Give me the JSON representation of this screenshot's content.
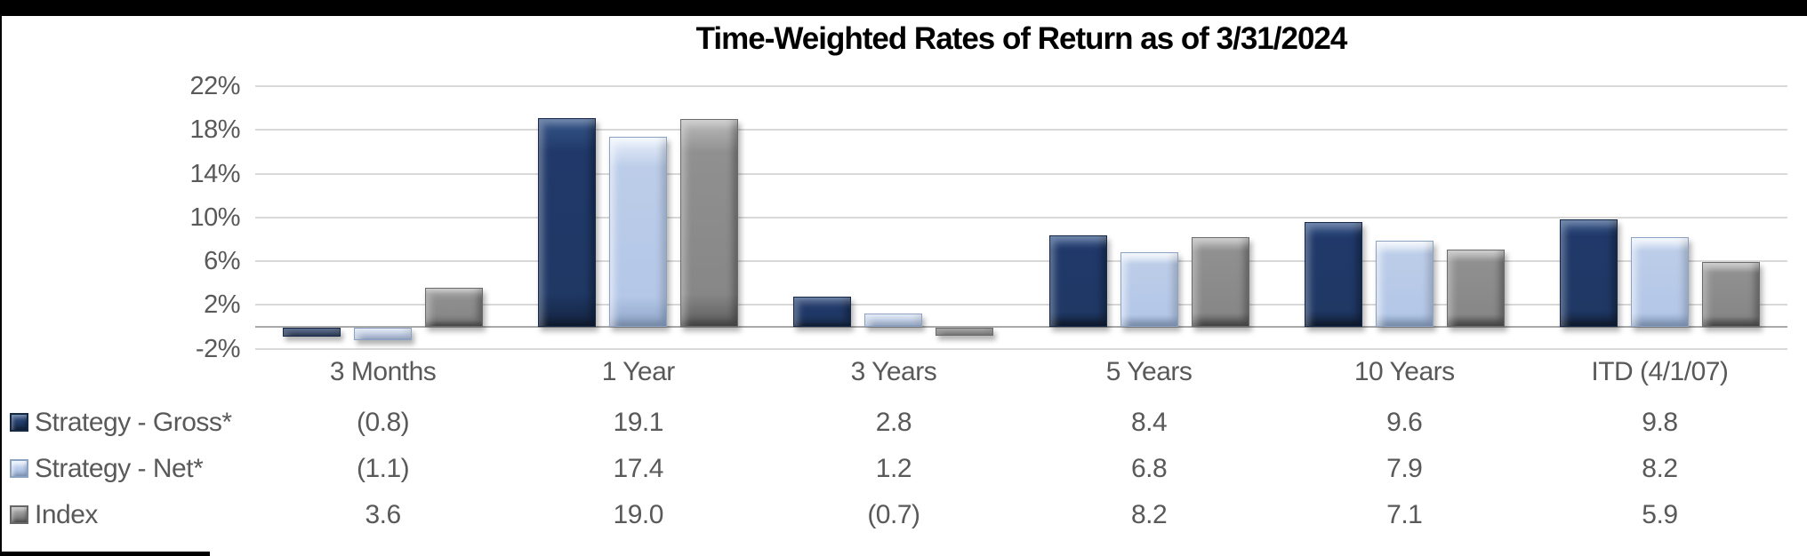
{
  "chart_data": {
    "type": "bar",
    "title": "Time-Weighted Rates of Return as of 3/31/2024",
    "categories": [
      "3 Months",
      "1 Year",
      "3 Years",
      "5 Years",
      "10 Years",
      "ITD (4/1/07)"
    ],
    "series": [
      {
        "name": "Strategy - Gross*",
        "color": "#1f3864",
        "values": [
          -0.8,
          19.1,
          2.8,
          8.4,
          9.6,
          9.8
        ],
        "display": [
          "(0.8)",
          "19.1",
          "2.8",
          "8.4",
          "9.6",
          "9.8"
        ]
      },
      {
        "name": "Strategy - Net*",
        "color": "#b4c7e7",
        "values": [
          -1.1,
          17.4,
          1.2,
          6.8,
          7.9,
          8.2
        ],
        "display": [
          "(1.1)",
          "17.4",
          "1.2",
          "6.8",
          "7.9",
          "8.2"
        ]
      },
      {
        "name": "Index",
        "color": "#878787",
        "values": [
          3.6,
          19.0,
          -0.7,
          8.2,
          7.1,
          5.9
        ],
        "display": [
          "3.6",
          "19.0",
          "(0.7)",
          "8.2",
          "7.1",
          "5.9"
        ]
      }
    ],
    "y_axis": {
      "tick_labels": [
        "22%",
        "18%",
        "14%",
        "10%",
        "6%",
        "2%",
        "-2%"
      ],
      "tick_values": [
        22,
        18,
        14,
        10,
        6,
        2,
        -2
      ],
      "min": -2,
      "max": 22,
      "unit": "%",
      "grid": true
    },
    "legend_position": "table-left",
    "negative_number_format": "parentheses",
    "colors": {
      "grid": "#d9d9d9",
      "axis_line": "#a9a9a9",
      "text": "#595959",
      "title": "#000000"
    }
  }
}
